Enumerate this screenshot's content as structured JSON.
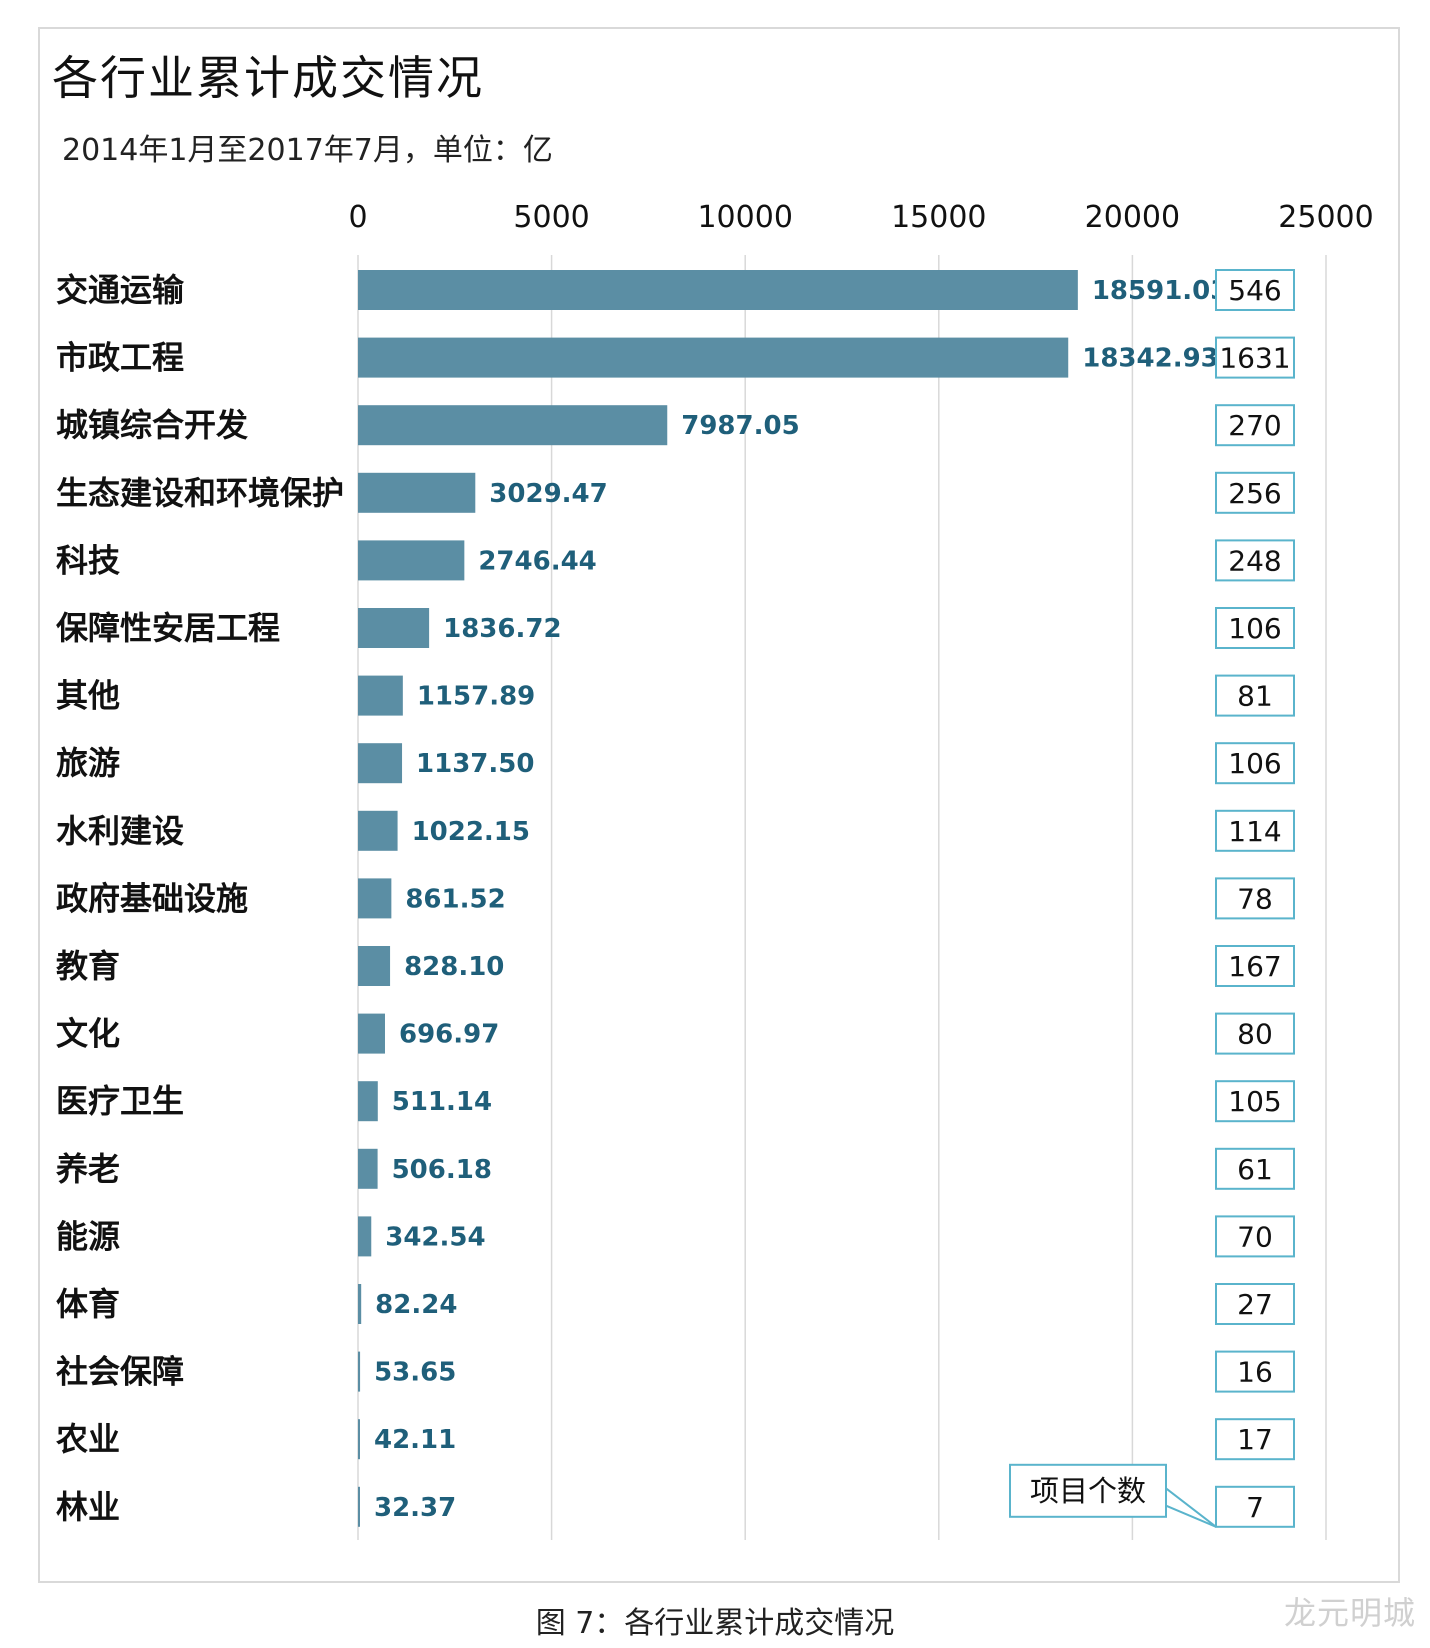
{
  "title": "各行业累计成交情况",
  "subtitle": "2014年1月至2017年7月，单位：亿",
  "caption": "图 7：各行业累计成交情况",
  "brand_mark": "龙元明城",
  "colors": {
    "bar": "#5b8ea4",
    "value_text": "#1f5f7a",
    "count_border": "#5ab4cc",
    "grid": "#d8d8d8",
    "frame": "#d9d9d9"
  },
  "chart_data": {
    "type": "bar",
    "orientation": "horizontal",
    "title": "各行业累计成交情况",
    "subtitle": "2014年1月至2017年7月，单位：亿",
    "xlim": [
      0,
      25000
    ],
    "x_ticks": [
      0,
      5000,
      10000,
      15000,
      20000,
      25000
    ],
    "x_axis_position": "top",
    "grid": true,
    "categories": [
      "交通运输",
      "市政工程",
      "城镇综合开发",
      "生态建设和环境保护",
      "科技",
      "保障性安居工程",
      "其他",
      "旅游",
      "水利建设",
      "政府基础设施",
      "教育",
      "文化",
      "医疗卫生",
      "养老",
      "能源",
      "体育",
      "社会保障",
      "农业",
      "林业"
    ],
    "series": [
      {
        "values": [
          18591.03,
          18342.93,
          7987.05,
          3029.47,
          2746.44,
          1836.72,
          1157.89,
          1137.5,
          1022.15,
          861.52,
          828.1,
          696.97,
          511.14,
          506.18,
          342.54,
          82.24,
          53.65,
          42.11,
          32.37
        ],
        "labels": [
          "18591.03",
          "18342.93",
          "7987.05",
          "3029.47",
          "2746.44",
          "1836.72",
          "1157.89",
          "1137.50",
          "1022.15",
          "861.52",
          "828.10",
          "696.97",
          "511.14",
          "506.18",
          "342.54",
          "82.24",
          "53.65",
          "42.11",
          "32.37"
        ]
      },
      {
        "name": "项目个数",
        "values": [
          546,
          1631,
          270,
          256,
          248,
          106,
          81,
          106,
          114,
          78,
          167,
          80,
          105,
          61,
          70,
          27,
          16,
          17,
          7
        ]
      }
    ],
    "callout": "项目个数"
  }
}
